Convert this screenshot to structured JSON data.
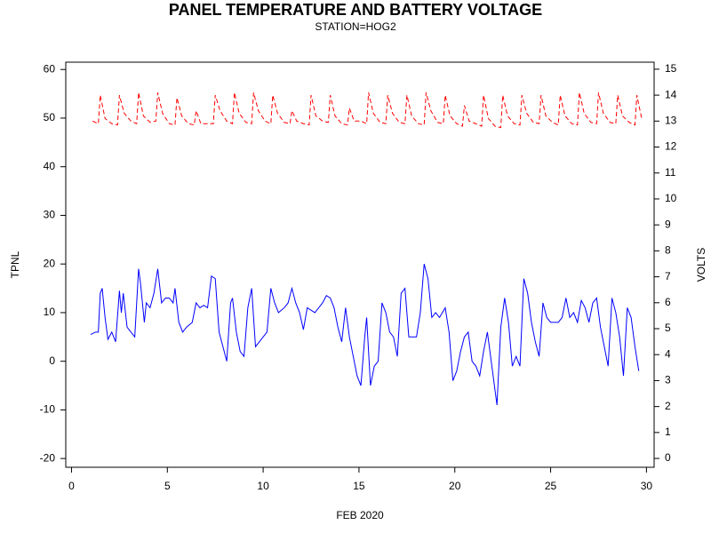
{
  "chart_data": {
    "type": "line",
    "title": "PANEL TEMPERATURE AND BATTERY VOLTAGE",
    "subtitle": "STATION=HOG2",
    "xlabel": "FEB 2020",
    "ylabel": "TPNL",
    "y2label": "VOLTS",
    "xlim": [
      -0.3,
      30.4
    ],
    "xticks": [
      0,
      5,
      10,
      15,
      20,
      25,
      30
    ],
    "ylim": [
      -21.8,
      61.5
    ],
    "yticks": [
      -20,
      -10,
      0,
      10,
      20,
      30,
      40,
      50,
      60
    ],
    "y2lim": [
      -0.34,
      15.27
    ],
    "y2ticks": [
      0,
      1,
      2,
      3,
      4,
      5,
      6,
      7,
      8,
      9,
      10,
      11,
      12,
      13,
      14,
      15
    ],
    "series": [
      {
        "name": "TPNL",
        "color": "#0000ff",
        "style": "solid",
        "x": [
          1.0,
          1.25,
          1.4,
          1.5,
          1.6,
          1.75,
          1.9,
          2.1,
          2.3,
          2.5,
          2.6,
          2.7,
          2.9,
          3.1,
          3.3,
          3.5,
          3.6,
          3.8,
          3.9,
          4.1,
          4.3,
          4.5,
          4.7,
          4.9,
          5.1,
          5.3,
          5.4,
          5.6,
          5.8,
          6.0,
          6.3,
          6.5,
          6.7,
          6.9,
          7.1,
          7.3,
          7.5,
          7.7,
          7.9,
          8.1,
          8.3,
          8.4,
          8.6,
          8.8,
          9.0,
          9.2,
          9.4,
          9.6,
          9.8,
          10.0,
          10.2,
          10.4,
          10.6,
          10.8,
          11.1,
          11.3,
          11.5,
          11.7,
          11.9,
          12.1,
          12.3,
          12.5,
          12.7,
          12.9,
          13.1,
          13.3,
          13.5,
          13.7,
          13.9,
          14.1,
          14.3,
          14.5,
          14.7,
          14.9,
          15.1,
          15.3,
          15.4,
          15.6,
          15.8,
          16.0,
          16.2,
          16.4,
          16.6,
          16.8,
          17.0,
          17.2,
          17.4,
          17.6,
          17.8,
          18.0,
          18.2,
          18.4,
          18.6,
          18.8,
          19.0,
          19.2,
          19.5,
          19.7,
          19.9,
          20.1,
          20.3,
          20.5,
          20.7,
          20.9,
          21.1,
          21.3,
          21.5,
          21.7,
          21.9,
          22.1,
          22.2,
          22.4,
          22.6,
          22.8,
          23.0,
          23.2,
          23.4,
          23.6,
          23.8,
          24.0,
          24.2,
          24.4,
          24.6,
          24.8,
          25.0,
          25.2,
          25.4,
          25.6,
          25.8,
          26.0,
          26.2,
          26.4,
          26.6,
          26.8,
          27.0,
          27.2,
          27.4,
          27.6,
          27.8,
          28.0,
          28.2,
          28.4,
          28.6,
          28.8,
          29.0,
          29.2,
          29.4,
          29.6
        ],
        "values": [
          5.5,
          6,
          6,
          14,
          15,
          9,
          4.5,
          6,
          4,
          14.5,
          10,
          14,
          7,
          6,
          5,
          19,
          16,
          8,
          12,
          11,
          14,
          19,
          12,
          13,
          13,
          12,
          15,
          8,
          6,
          7,
          8,
          12,
          11,
          11.5,
          11,
          17.5,
          17,
          6,
          3,
          0,
          12,
          13,
          6,
          2,
          1,
          11,
          15,
          3,
          4,
          5,
          6,
          15,
          12,
          10,
          11,
          12,
          15,
          12,
          10,
          6.5,
          11,
          10.5,
          10,
          11,
          12,
          13.5,
          13,
          11,
          7,
          4,
          11,
          5,
          1,
          -3,
          -5,
          5,
          9,
          -5,
          -1,
          0,
          12,
          10,
          6,
          5,
          1,
          14,
          15,
          5,
          5,
          5,
          10,
          20,
          17,
          9,
          10,
          9,
          11,
          6,
          -4,
          -2,
          2,
          5,
          6,
          0,
          -1,
          -3,
          2,
          6,
          0,
          -6,
          -9,
          7,
          13,
          8,
          -1,
          1,
          -1,
          17,
          14,
          8,
          4,
          1,
          12,
          9,
          8,
          8,
          8,
          9,
          13,
          9,
          10,
          8,
          12.5,
          11,
          8,
          12,
          13,
          7,
          3,
          -1,
          13,
          10,
          5,
          -3,
          11,
          9,
          3,
          -2
        ]
      },
      {
        "name": "VOLTS",
        "color": "#ff0000",
        "style": "dashed",
        "axis": "y2",
        "x": [
          1.1,
          1.4,
          1.5,
          1.75,
          2.1,
          2.4,
          2.5,
          2.75,
          3.1,
          3.4,
          3.5,
          3.75,
          4.1,
          4.4,
          4.5,
          4.75,
          5.1,
          5.4,
          5.5,
          5.75,
          6.1,
          6.4,
          6.5,
          6.75,
          7.1,
          7.4,
          7.5,
          7.75,
          8.1,
          8.4,
          8.5,
          8.75,
          9.1,
          9.4,
          9.5,
          9.75,
          10.1,
          10.4,
          10.5,
          10.75,
          11.1,
          11.4,
          11.5,
          11.75,
          12.1,
          12.4,
          12.5,
          12.75,
          13.1,
          13.4,
          13.5,
          13.75,
          14.1,
          14.4,
          14.5,
          14.75,
          15.1,
          15.4,
          15.5,
          15.75,
          16.1,
          16.4,
          16.5,
          16.75,
          17.1,
          17.4,
          17.5,
          17.75,
          18.1,
          18.4,
          18.5,
          18.75,
          19.1,
          19.4,
          19.5,
          19.75,
          20.1,
          20.4,
          20.5,
          20.75,
          21.1,
          21.4,
          21.5,
          21.75,
          22.1,
          22.4,
          22.5,
          22.75,
          23.1,
          23.4,
          23.5,
          23.75,
          24.1,
          24.4,
          24.5,
          24.75,
          25.1,
          25.4,
          25.5,
          25.75,
          26.1,
          26.4,
          26.5,
          26.75,
          27.1,
          27.4,
          27.5,
          27.75,
          28.1,
          28.4,
          28.5,
          28.75,
          29.1,
          29.4,
          29.5,
          29.75
        ],
        "values": [
          13.0,
          12.9,
          14.0,
          13.1,
          12.9,
          12.85,
          14.0,
          13.3,
          13.0,
          12.9,
          14.1,
          13.2,
          12.95,
          13.0,
          14.1,
          13.3,
          12.9,
          12.85,
          13.9,
          13.2,
          12.9,
          12.85,
          13.4,
          12.9,
          12.9,
          12.9,
          14.0,
          13.4,
          13.0,
          12.9,
          14.1,
          13.3,
          12.95,
          12.9,
          14.1,
          13.4,
          13.0,
          12.9,
          14.0,
          13.3,
          12.95,
          12.9,
          13.4,
          13.0,
          12.9,
          12.85,
          14.0,
          13.2,
          13.0,
          12.95,
          14.0,
          13.2,
          12.9,
          12.85,
          13.5,
          13.0,
          13.0,
          12.9,
          14.1,
          13.3,
          12.95,
          12.9,
          14.0,
          13.3,
          12.95,
          12.9,
          14.0,
          13.2,
          12.9,
          12.85,
          14.1,
          13.4,
          12.95,
          12.9,
          14.0,
          13.2,
          12.9,
          12.8,
          13.6,
          13.0,
          12.9,
          12.8,
          14.0,
          13.1,
          12.8,
          12.75,
          14.0,
          13.2,
          12.9,
          12.85,
          14.0,
          13.3,
          12.95,
          12.9,
          14.0,
          13.2,
          12.95,
          12.85,
          14.0,
          13.2,
          12.9,
          12.85,
          14.1,
          13.3,
          12.95,
          12.9,
          14.1,
          13.3,
          12.95,
          12.9,
          14.0,
          13.2,
          12.95,
          12.85,
          14.0,
          13.1
        ]
      }
    ]
  }
}
